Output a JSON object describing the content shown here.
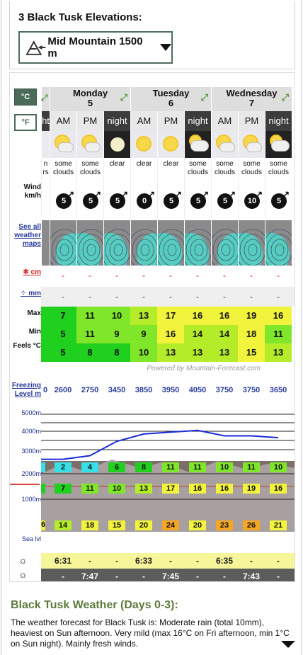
{
  "elevation": {
    "title": "3 Black Tusk Elevations:",
    "selected": "Mid Mountain 1500 m"
  },
  "units": {
    "celsius": "°C",
    "fahrenheit": "°F"
  },
  "row_labels": {
    "wind": "Wind km/h",
    "maps": "See all weather maps",
    "snow": "cm",
    "rain": "mm",
    "max": "Max",
    "min": "Min",
    "feels": "Feels °C",
    "freezing": "Freezing Level m",
    "sea": "Sea lvl"
  },
  "partial": {
    "time": "ht",
    "desc": "n rs",
    "freezing": "0",
    "chart_temp": "",
    "low": "6"
  },
  "days": [
    {
      "name": "Monday",
      "date": "5"
    },
    {
      "name": "Tuesday",
      "date": "6"
    },
    {
      "name": "Wednesday",
      "date": "7"
    }
  ],
  "periods": [
    {
      "time": "AM",
      "desc": "some clouds",
      "wind": "5",
      "snow": "-",
      "rain": "-",
      "max": "7",
      "min": "5",
      "feels": "5",
      "freezing": "2600",
      "chart_temp": "2",
      "chart_mid": "7",
      "chart_low": "14",
      "icon": "sun-cloud-icon"
    },
    {
      "time": "PM",
      "desc": "some clouds",
      "wind": "5",
      "snow": "-",
      "rain": "-",
      "max": "11",
      "min": "11",
      "feels": "8",
      "freezing": "2750",
      "chart_temp": "4",
      "chart_mid": "11",
      "chart_low": "18",
      "icon": "sun-cloud-icon"
    },
    {
      "time": "night",
      "desc": "clear",
      "wind": "5",
      "snow": "-",
      "rain": "-",
      "max": "10",
      "min": "9",
      "feels": "8",
      "freezing": "3450",
      "chart_temp": "6",
      "chart_mid": "10",
      "chart_low": "15",
      "icon": "moon-icon"
    },
    {
      "time": "AM",
      "desc": "clear",
      "wind": "0",
      "snow": "-",
      "rain": "-",
      "max": "13",
      "min": "9",
      "feels": "10",
      "freezing": "3850",
      "chart_temp": "8",
      "chart_mid": "13",
      "chart_low": "20",
      "icon": "sun-icon"
    },
    {
      "time": "PM",
      "desc": "clear",
      "wind": "5",
      "snow": "-",
      "rain": "-",
      "max": "17",
      "min": "16",
      "feels": "13",
      "freezing": "3950",
      "chart_temp": "11",
      "chart_mid": "17",
      "chart_low": "24",
      "icon": "sun-icon"
    },
    {
      "time": "night",
      "desc": "some clouds",
      "wind": "5",
      "snow": "-",
      "rain": "-",
      "max": "16",
      "min": "14",
      "feels": "13",
      "freezing": "4050",
      "chart_temp": "11",
      "chart_mid": "16",
      "chart_low": "20",
      "icon": "cloud-icon"
    },
    {
      "time": "AM",
      "desc": "some clouds",
      "wind": "5",
      "snow": "-",
      "rain": "-",
      "max": "16",
      "min": "14",
      "feels": "13",
      "freezing": "3750",
      "chart_temp": "10",
      "chart_mid": "16",
      "chart_low": "23",
      "icon": "sun-cloud-icon"
    },
    {
      "time": "PM",
      "desc": "some clouds",
      "wind": "10",
      "snow": "-",
      "rain": "-",
      "max": "19",
      "min": "18",
      "feels": "15",
      "freezing": "3750",
      "chart_temp": "11",
      "chart_mid": "19",
      "chart_low": "26",
      "icon": "sun-cloud-icon"
    },
    {
      "time": "night",
      "desc": "some clouds",
      "wind": "5",
      "snow": "-",
      "rain": "-",
      "max": "16",
      "min": "11",
      "feels": "13",
      "freezing": "3650",
      "chart_temp": "10",
      "chart_mid": "16",
      "chart_low": "21",
      "icon": "cloud-icon"
    }
  ],
  "chart_axis": [
    "5000m",
    "4000m",
    "3000m",
    "2000m",
    "1000m"
  ],
  "powered_by": "Powered by Mountain-Forecast.com",
  "sunrise": [
    "6:31",
    "6:33",
    "6:35"
  ],
  "sunset": [
    "7:47",
    "7:45",
    "7:43"
  ],
  "dash": "-",
  "summary": {
    "title": "Black Tusk Weather (Days 0-3):",
    "text": "The weather forecast for Black Tusk is: Moderate rain (total 10mm), heaviest on Sun afternoon. Very mild (max 16°C on Fri afternoon, min 1°C on Sun night). Mainly fresh winds."
  },
  "colors": {
    "green": "#1fd01f",
    "lime": "#7fe629",
    "yellowgreen": "#b4ec2a",
    "yellow": "#f2f33c",
    "orange": "#f5a623",
    "freeze_line": "#1a2bd6",
    "accent": "#4a6b57"
  }
}
